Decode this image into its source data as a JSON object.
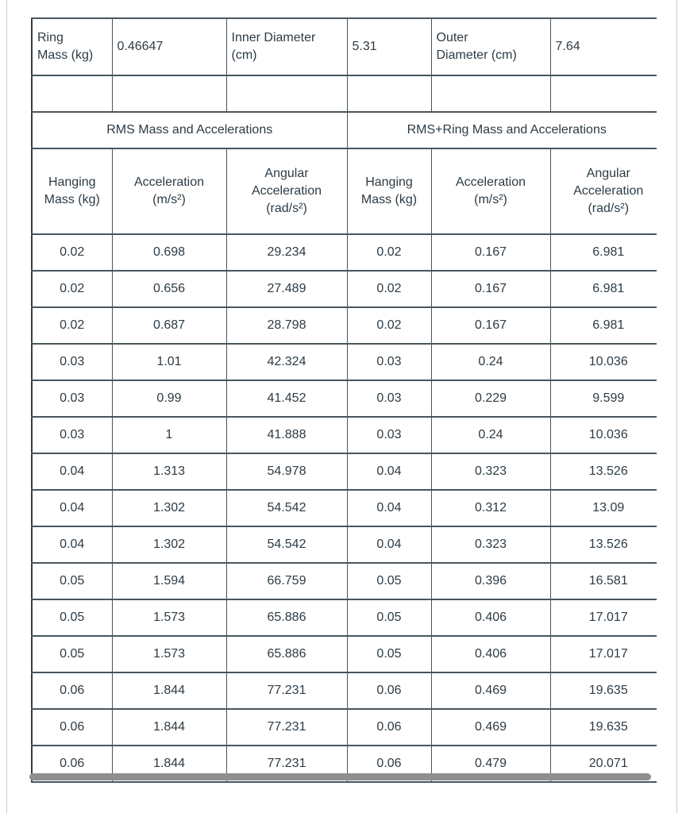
{
  "colors": {
    "text": "#2D3B45",
    "border": "#4A555D",
    "border_strong": "#323E47",
    "container_border": "#C7CDD1",
    "scroll_thumb": "#8F8F8F"
  },
  "info": {
    "ring_mass": {
      "label": "Ring\nMass (kg)",
      "value": "0.46647"
    },
    "inner_diameter": {
      "label": "Inner Diameter\n(cm)",
      "value": "5.31"
    },
    "outer_diameter": {
      "label": "Outer\nDiameter (cm)",
      "value": "7.64"
    }
  },
  "sections": {
    "left": "RMS Mass and Accelerations",
    "right": "RMS+Ring Mass and Accelerations"
  },
  "columns": {
    "hanging_mass": "Hanging\nMass (kg)",
    "acceleration": "Acceleration\n(m/s²)",
    "angular_acceleration": "Angular\nAcceleration\n(rad/s²)"
  },
  "rows": [
    [
      "0.02",
      "0.698",
      "29.234",
      "0.02",
      "0.167",
      "6.981"
    ],
    [
      "0.02",
      "0.656",
      "27.489",
      "0.02",
      "0.167",
      "6.981"
    ],
    [
      "0.02",
      "0.687",
      "28.798",
      "0.02",
      "0.167",
      "6.981"
    ],
    [
      "0.03",
      "1.01",
      "42.324",
      "0.03",
      "0.24",
      "10.036"
    ],
    [
      "0.03",
      "0.99",
      "41.452",
      "0.03",
      "0.229",
      "9.599"
    ],
    [
      "0.03",
      "1",
      "41.888",
      "0.03",
      "0.24",
      "10.036"
    ],
    [
      "0.04",
      "1.313",
      "54.978",
      "0.04",
      "0.323",
      "13.526"
    ],
    [
      "0.04",
      "1.302",
      "54.542",
      "0.04",
      "0.312",
      "13.09"
    ],
    [
      "0.04",
      "1.302",
      "54.542",
      "0.04",
      "0.323",
      "13.526"
    ],
    [
      "0.05",
      "1.594",
      "66.759",
      "0.05",
      "0.396",
      "16.581"
    ],
    [
      "0.05",
      "1.573",
      "65.886",
      "0.05",
      "0.406",
      "17.017"
    ],
    [
      "0.05",
      "1.573",
      "65.886",
      "0.05",
      "0.406",
      "17.017"
    ],
    [
      "0.06",
      "1.844",
      "77.231",
      "0.06",
      "0.469",
      "19.635"
    ],
    [
      "0.06",
      "1.844",
      "77.231",
      "0.06",
      "0.469",
      "19.635"
    ],
    [
      "0.06",
      "1.844",
      "77.231",
      "0.06",
      "0.479",
      "20.071"
    ]
  ]
}
